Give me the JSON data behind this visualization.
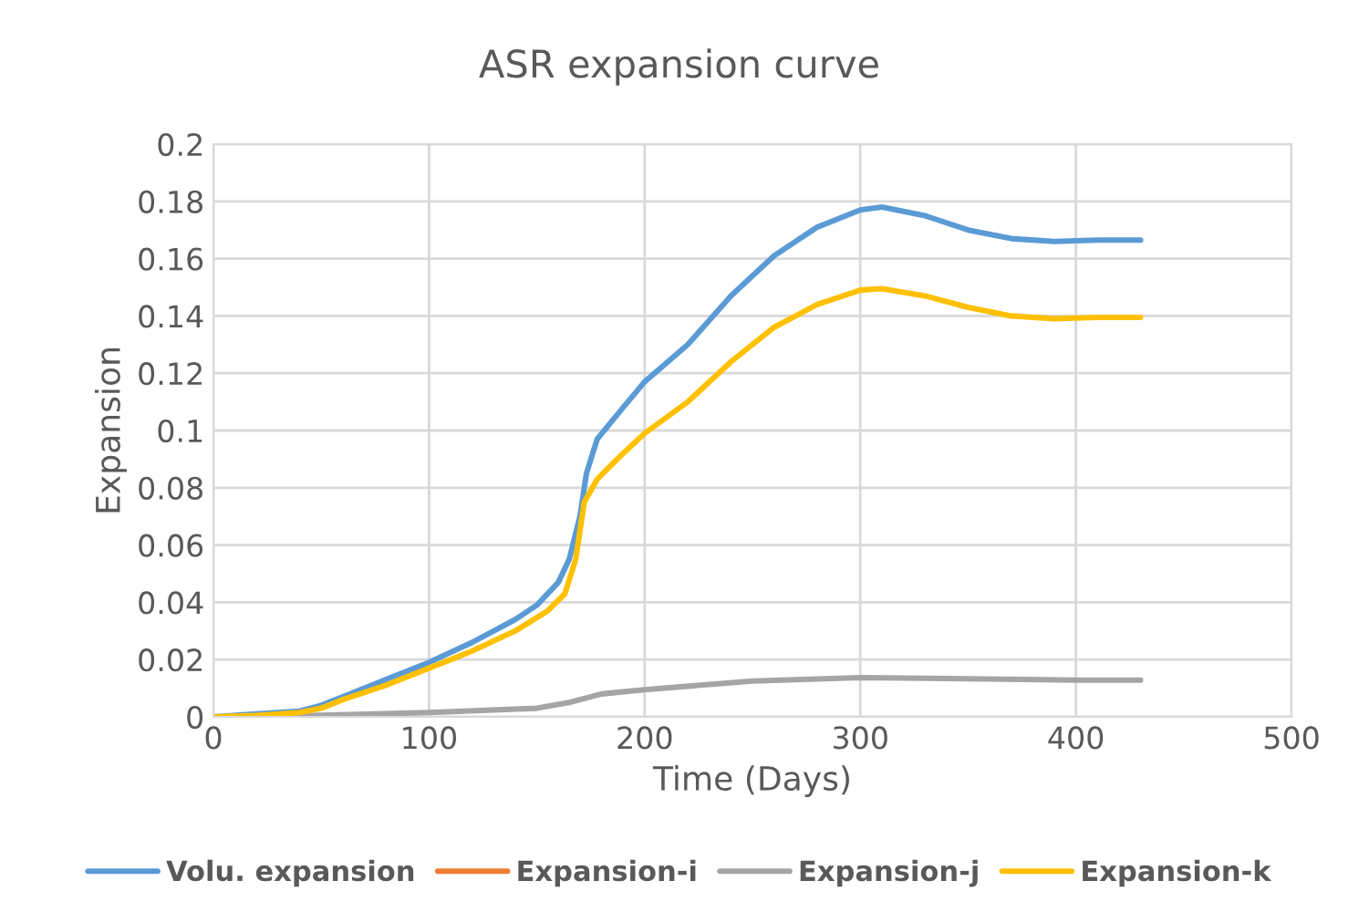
{
  "chart_data": {
    "type": "line",
    "title": "ASR expansion curve",
    "xlabel": "Time (Days)",
    "ylabel": "Expansion",
    "xlim": [
      0,
      500
    ],
    "xticks": [
      0,
      100,
      200,
      300,
      400,
      500
    ],
    "ylim": [
      0,
      0.2
    ],
    "yticks": [
      0,
      0.02,
      0.04,
      0.06,
      0.08,
      0.1,
      0.12,
      0.14,
      0.16,
      0.18,
      0.2
    ],
    "grid": true,
    "legend": "bottom",
    "marker": "none",
    "line_style": "solid",
    "series": [
      {
        "name": "Volu. expansion",
        "color": "#5b9bd5",
        "x": [
          0,
          20,
          40,
          50,
          60,
          80,
          100,
          120,
          140,
          150,
          160,
          165,
          170,
          173,
          178,
          190,
          200,
          220,
          240,
          260,
          280,
          300,
          310,
          330,
          350,
          370,
          390,
          410,
          430
        ],
        "values": [
          0,
          0.001,
          0.002,
          0.004,
          0.007,
          0.013,
          0.019,
          0.026,
          0.034,
          0.039,
          0.047,
          0.055,
          0.07,
          0.085,
          0.097,
          0.108,
          0.117,
          0.13,
          0.147,
          0.161,
          0.171,
          0.177,
          0.178,
          0.175,
          0.17,
          0.167,
          0.166,
          0.1665,
          0.1665
        ]
      },
      {
        "name": "Expansion-i",
        "color": "#ed7d31"
      },
      {
        "name": "Expansion-j",
        "color": "#a5a5a5",
        "x": [
          0,
          50,
          100,
          150,
          165,
          180,
          200,
          250,
          300,
          350,
          400,
          430
        ],
        "values": [
          0,
          0.0005,
          0.0015,
          0.003,
          0.005,
          0.008,
          0.0095,
          0.0125,
          0.0137,
          0.0133,
          0.0128,
          0.0128
        ]
      },
      {
        "name": "Expansion-k",
        "color": "#ffc000",
        "x": [
          0,
          20,
          40,
          50,
          60,
          80,
          100,
          120,
          140,
          155,
          163,
          168,
          172,
          178,
          190,
          200,
          220,
          240,
          260,
          280,
          300,
          310,
          330,
          350,
          370,
          390,
          410,
          430
        ],
        "values": [
          0,
          0.0005,
          0.0015,
          0.003,
          0.006,
          0.011,
          0.017,
          0.023,
          0.03,
          0.037,
          0.043,
          0.055,
          0.075,
          0.083,
          0.092,
          0.099,
          0.11,
          0.124,
          0.136,
          0.144,
          0.149,
          0.1495,
          0.147,
          0.143,
          0.14,
          0.139,
          0.1395,
          0.1395
        ]
      }
    ]
  }
}
